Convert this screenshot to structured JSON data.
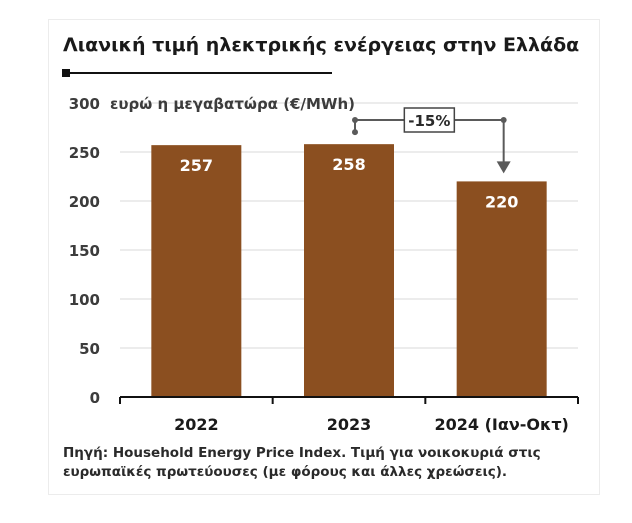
{
  "chart_data": {
    "type": "bar",
    "title": "Λιανική τιμή ηλεκτρικής ενέργειας στην Ελλάδα",
    "ylabel": "ευρώ η μεγαβατώρα (€/MWh)",
    "categories": [
      "2022",
      "2023",
      "2024 (Ιαν-Οκτ)"
    ],
    "values": [
      257,
      258,
      220
    ],
    "value_labels": [
      "257",
      "258",
      "220"
    ],
    "ylim": [
      0,
      300
    ],
    "yticks": [
      0,
      50,
      100,
      150,
      200,
      250,
      300
    ],
    "ytick_labels": [
      "0",
      "50",
      "100",
      "150",
      "200",
      "250",
      "300"
    ],
    "grid": true,
    "bar_color": "#8b4f20",
    "annotation": {
      "label": "-15%",
      "from_category": 1,
      "to_category": 2
    },
    "source": "Πηγή: Household Energy Price Index. Τιμή για νοικοκυριά στις ευρωπαϊκές πρωτεύουσες (με φόρους και άλλες χρεώσεις)."
  }
}
